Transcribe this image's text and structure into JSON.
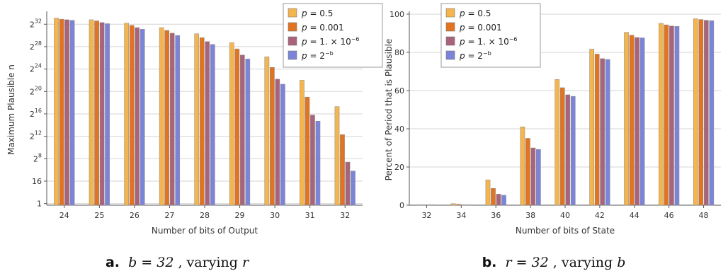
{
  "colors": {
    "series": [
      "#f4b54e",
      "#e2731f",
      "#a9637a",
      "#7b84d8"
    ],
    "grid": "#d6d6d6",
    "axis": "#555555"
  },
  "chart_data": [
    {
      "type": "bar",
      "xlabel": "Number of bits of Output",
      "ylabel": "Maximum Plausible n",
      "y_scale": "log2",
      "yticks": [
        {
          "base": "",
          "exp": "",
          "text": "1",
          "log2": 0
        },
        {
          "base": "",
          "exp": "",
          "text": "16",
          "log2": 4
        },
        {
          "base": "2",
          "exp": "8",
          "text": "",
          "log2": 8
        },
        {
          "base": "2",
          "exp": "12",
          "text": "",
          "log2": 12
        },
        {
          "base": "2",
          "exp": "16",
          "text": "",
          "log2": 16
        },
        {
          "base": "2",
          "exp": "20",
          "text": "",
          "log2": 20
        },
        {
          "base": "2",
          "exp": "24",
          "text": "",
          "log2": 24
        },
        {
          "base": "2",
          "exp": "28",
          "text": "",
          "log2": 28
        },
        {
          "base": "2",
          "exp": "32",
          "text": "",
          "log2": 32
        }
      ],
      "ylim_log2": [
        -0.3,
        33.8
      ],
      "categories": [
        "24",
        "25",
        "26",
        "27",
        "28",
        "29",
        "30",
        "31",
        "32"
      ],
      "series": [
        {
          "name": "p = 0.5",
          "values_log2": [
            33.1,
            32.8,
            32.2,
            31.4,
            30.3,
            28.7,
            26.2,
            22.0,
            17.3
          ]
        },
        {
          "name": "p = 0.001",
          "values_log2": [
            32.9,
            32.6,
            31.8,
            30.9,
            29.6,
            27.6,
            24.3,
            19.0,
            12.3
          ]
        },
        {
          "name": "p = 1. × 10⁻⁶",
          "values_log2": [
            32.8,
            32.3,
            31.4,
            30.4,
            28.9,
            26.5,
            22.2,
            15.8,
            7.4
          ]
        },
        {
          "name": "p = 2⁻ᵇ",
          "values_log2": [
            32.7,
            32.1,
            31.1,
            30.0,
            28.4,
            25.8,
            21.3,
            14.7,
            5.8
          ]
        }
      ],
      "legend_position": "top-right",
      "caption": {
        "label": "a.",
        "text_pre": "b = 32",
        "text_post": ", varying ",
        "var": "r"
      }
    },
    {
      "type": "bar",
      "xlabel": "Number of bits of State",
      "ylabel": "Percent of Period that is Plausible",
      "ylim": [
        0,
        100
      ],
      "yticks": [
        0,
        20,
        40,
        60,
        80,
        100
      ],
      "categories": [
        "32",
        "34",
        "36",
        "38",
        "40",
        "42",
        "44",
        "46",
        "48"
      ],
      "series": [
        {
          "name": "p = 0.5",
          "values": [
            0.1,
            0.8,
            13.3,
            41.0,
            65.8,
            81.7,
            90.5,
            95.2,
            97.6
          ]
        },
        {
          "name": "p = 0.001",
          "values": [
            0.1,
            0.5,
            8.8,
            35.0,
            61.5,
            79.1,
            89.0,
            94.4,
            97.2
          ]
        },
        {
          "name": "p = 1. × 10⁻⁶",
          "values": [
            0.0,
            0.2,
            5.8,
            30.0,
            57.8,
            76.7,
            87.8,
            93.8,
            96.8
          ]
        },
        {
          "name": "p = 2⁻ᵇ",
          "values": [
            0.0,
            0.2,
            5.2,
            29.2,
            57.0,
            76.3,
            87.6,
            93.6,
            96.6
          ]
        }
      ],
      "legend_position": "top-left",
      "caption": {
        "label": "b.",
        "text_pre": "r = 32",
        "text_post": ", varying ",
        "var": "b"
      }
    }
  ],
  "legend": [
    {
      "pre": "p",
      "mid": " = 0.5",
      "sup": ""
    },
    {
      "pre": "p",
      "mid": " = 0.001",
      "sup": ""
    },
    {
      "pre": "p",
      "mid": " = 1. × 10",
      "sup": "−6"
    },
    {
      "pre": "p",
      "mid": " = 2",
      "sup": "−b"
    }
  ]
}
